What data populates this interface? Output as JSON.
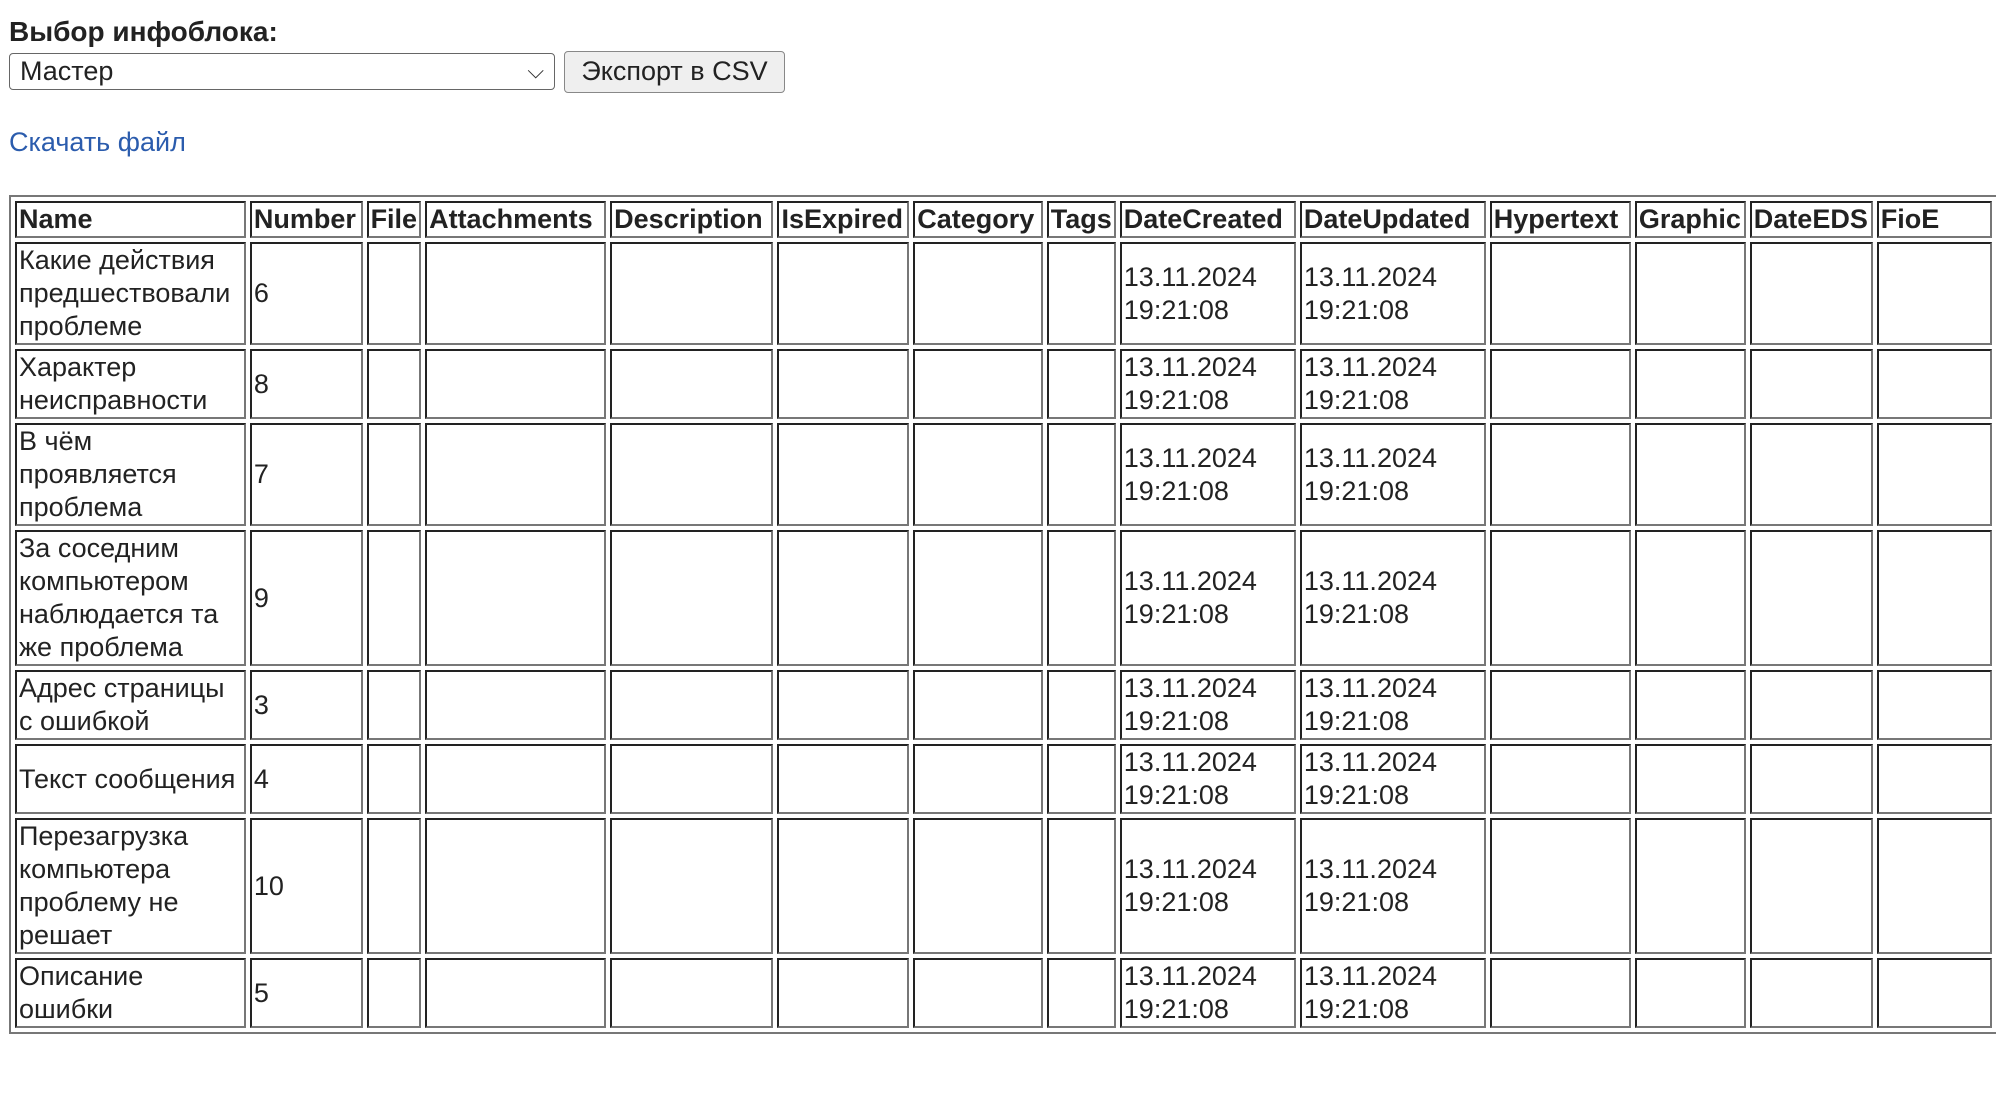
{
  "form": {
    "label": "Выбор инфоблока:",
    "select_value": "Мастер",
    "export_button": "Экспорт в CSV",
    "download_link": "Скачать файл"
  },
  "table": {
    "columns": [
      "Name",
      "Number",
      "File",
      "Attachments",
      "Description",
      "IsExpired",
      "Category",
      "Tags",
      "DateCreated",
      "DateUpdated",
      "Hypertext",
      "Graphic",
      "DateEDS",
      "FioE"
    ],
    "rows": [
      {
        "name": "Какие действия предшествовали проблеме",
        "number": "6",
        "created": "13.11.2024 19:21:08",
        "updated": "13.11.2024 19:21:08"
      },
      {
        "name": "Характер неисправности",
        "number": "8",
        "created": "13.11.2024 19:21:08",
        "updated": "13.11.2024 19:21:08"
      },
      {
        "name": "В чём проявляется проблема",
        "number": "7",
        "created": "13.11.2024 19:21:08",
        "updated": "13.11.2024 19:21:08"
      },
      {
        "name": "За соседним компьютером наблюдается та же проблема",
        "number": "9",
        "created": "13.11.2024 19:21:08",
        "updated": "13.11.2024 19:21:08"
      },
      {
        "name": "Адрес страницы с ошибкой",
        "number": "3",
        "created": "13.11.2024 19:21:08",
        "updated": "13.11.2024 19:21:08"
      },
      {
        "name": "Текст сообщения",
        "number": "4",
        "created": "13.11.2024 19:21:08",
        "updated": "13.11.2024 19:21:08"
      },
      {
        "name": "Перезагрузка компьютера проблему не решает",
        "number": "10",
        "created": "13.11.2024 19:21:08",
        "updated": "13.11.2024 19:21:08"
      },
      {
        "name": "Описание ошибки",
        "number": "5",
        "created": "13.11.2024 19:21:08",
        "updated": "13.11.2024 19:21:08"
      }
    ]
  },
  "colors": {
    "link": "#2b5cad",
    "button_bg": "#efefef"
  },
  "icons": {
    "select": "chevron-down-icon"
  }
}
